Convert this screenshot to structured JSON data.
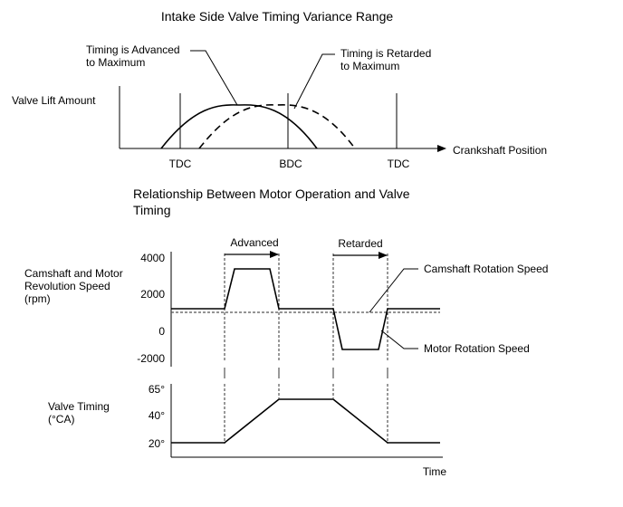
{
  "top": {
    "title": "Intake Side Valve Timing Variance Range",
    "y_label": "Valve Lift Amount",
    "x_label": "Crankshaft Position",
    "callout_advanced": [
      "Timing is Advanced",
      "to Maximum"
    ],
    "callout_retarded": [
      "Timing is Retarded",
      "to Maximum"
    ],
    "markers": [
      "TDC",
      "BDC",
      "TDC"
    ]
  },
  "bottom": {
    "title": [
      "Relationship Between Motor Operation and Valve",
      "Timing"
    ],
    "speed_label": [
      "Camshaft and Motor",
      "Revolution Speed",
      "(rpm)"
    ],
    "speed_ticks": [
      "4000",
      "2000",
      "0",
      "-2000"
    ],
    "timing_label": [
      "Valve Timing",
      "(°CA)"
    ],
    "timing_ticks": [
      "65°",
      "40°",
      "20°"
    ],
    "phase_advanced": "Advanced",
    "phase_retarded": "Retarded",
    "legend_camshaft": "Camshaft Rotation Speed",
    "legend_motor": "Motor Rotation Speed",
    "x_label": "Time"
  },
  "colors": {
    "line": "#000000",
    "dashed": "#555555"
  }
}
